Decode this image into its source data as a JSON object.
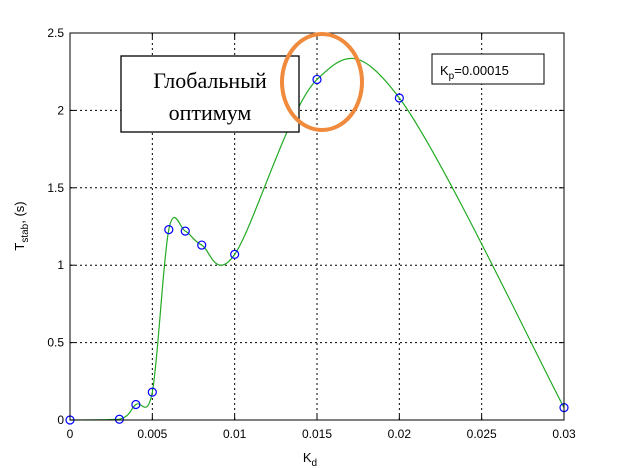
{
  "chart_data": {
    "type": "line",
    "xlabel": "K",
    "xlabel_sub": "d",
    "ylabel": "T",
    "ylabel_sub": "stab",
    "ylabel_suffix": ", (s)",
    "xlim": [
      0,
      0.03
    ],
    "ylim": [
      0,
      2.5
    ],
    "xticks": [
      0,
      0.005,
      0.01,
      0.015,
      0.02,
      0.025,
      0.03
    ],
    "xtick_labels": [
      "0",
      "0.005",
      "0.01",
      "0.015",
      "0.02",
      "0.025",
      "0.03"
    ],
    "yticks": [
      0,
      0.5,
      1,
      1.5,
      2,
      2.5
    ],
    "ytick_labels": [
      "0",
      "0.5",
      "1",
      "1.5",
      "2",
      "2.5"
    ],
    "grid": true,
    "series": [
      {
        "x": [
          0,
          0.003,
          0.004,
          0.005,
          0.006,
          0.007,
          0.008,
          0.01,
          0.015,
          0.02,
          0.03
        ],
        "y": [
          0,
          0.005,
          0.1,
          0.18,
          1.23,
          1.22,
          1.13,
          1.07,
          2.2,
          2.08,
          0.08
        ]
      }
    ],
    "line_color": "#22aa22",
    "marker_color": "#0000ff",
    "legend": {
      "label": "K",
      "label_sub": "p",
      "value_text": "=0.00015",
      "position": "top-right"
    },
    "annotation": {
      "line1": "Глобальный",
      "line2": "оптимум",
      "circle_color": "#f08a3c"
    }
  }
}
